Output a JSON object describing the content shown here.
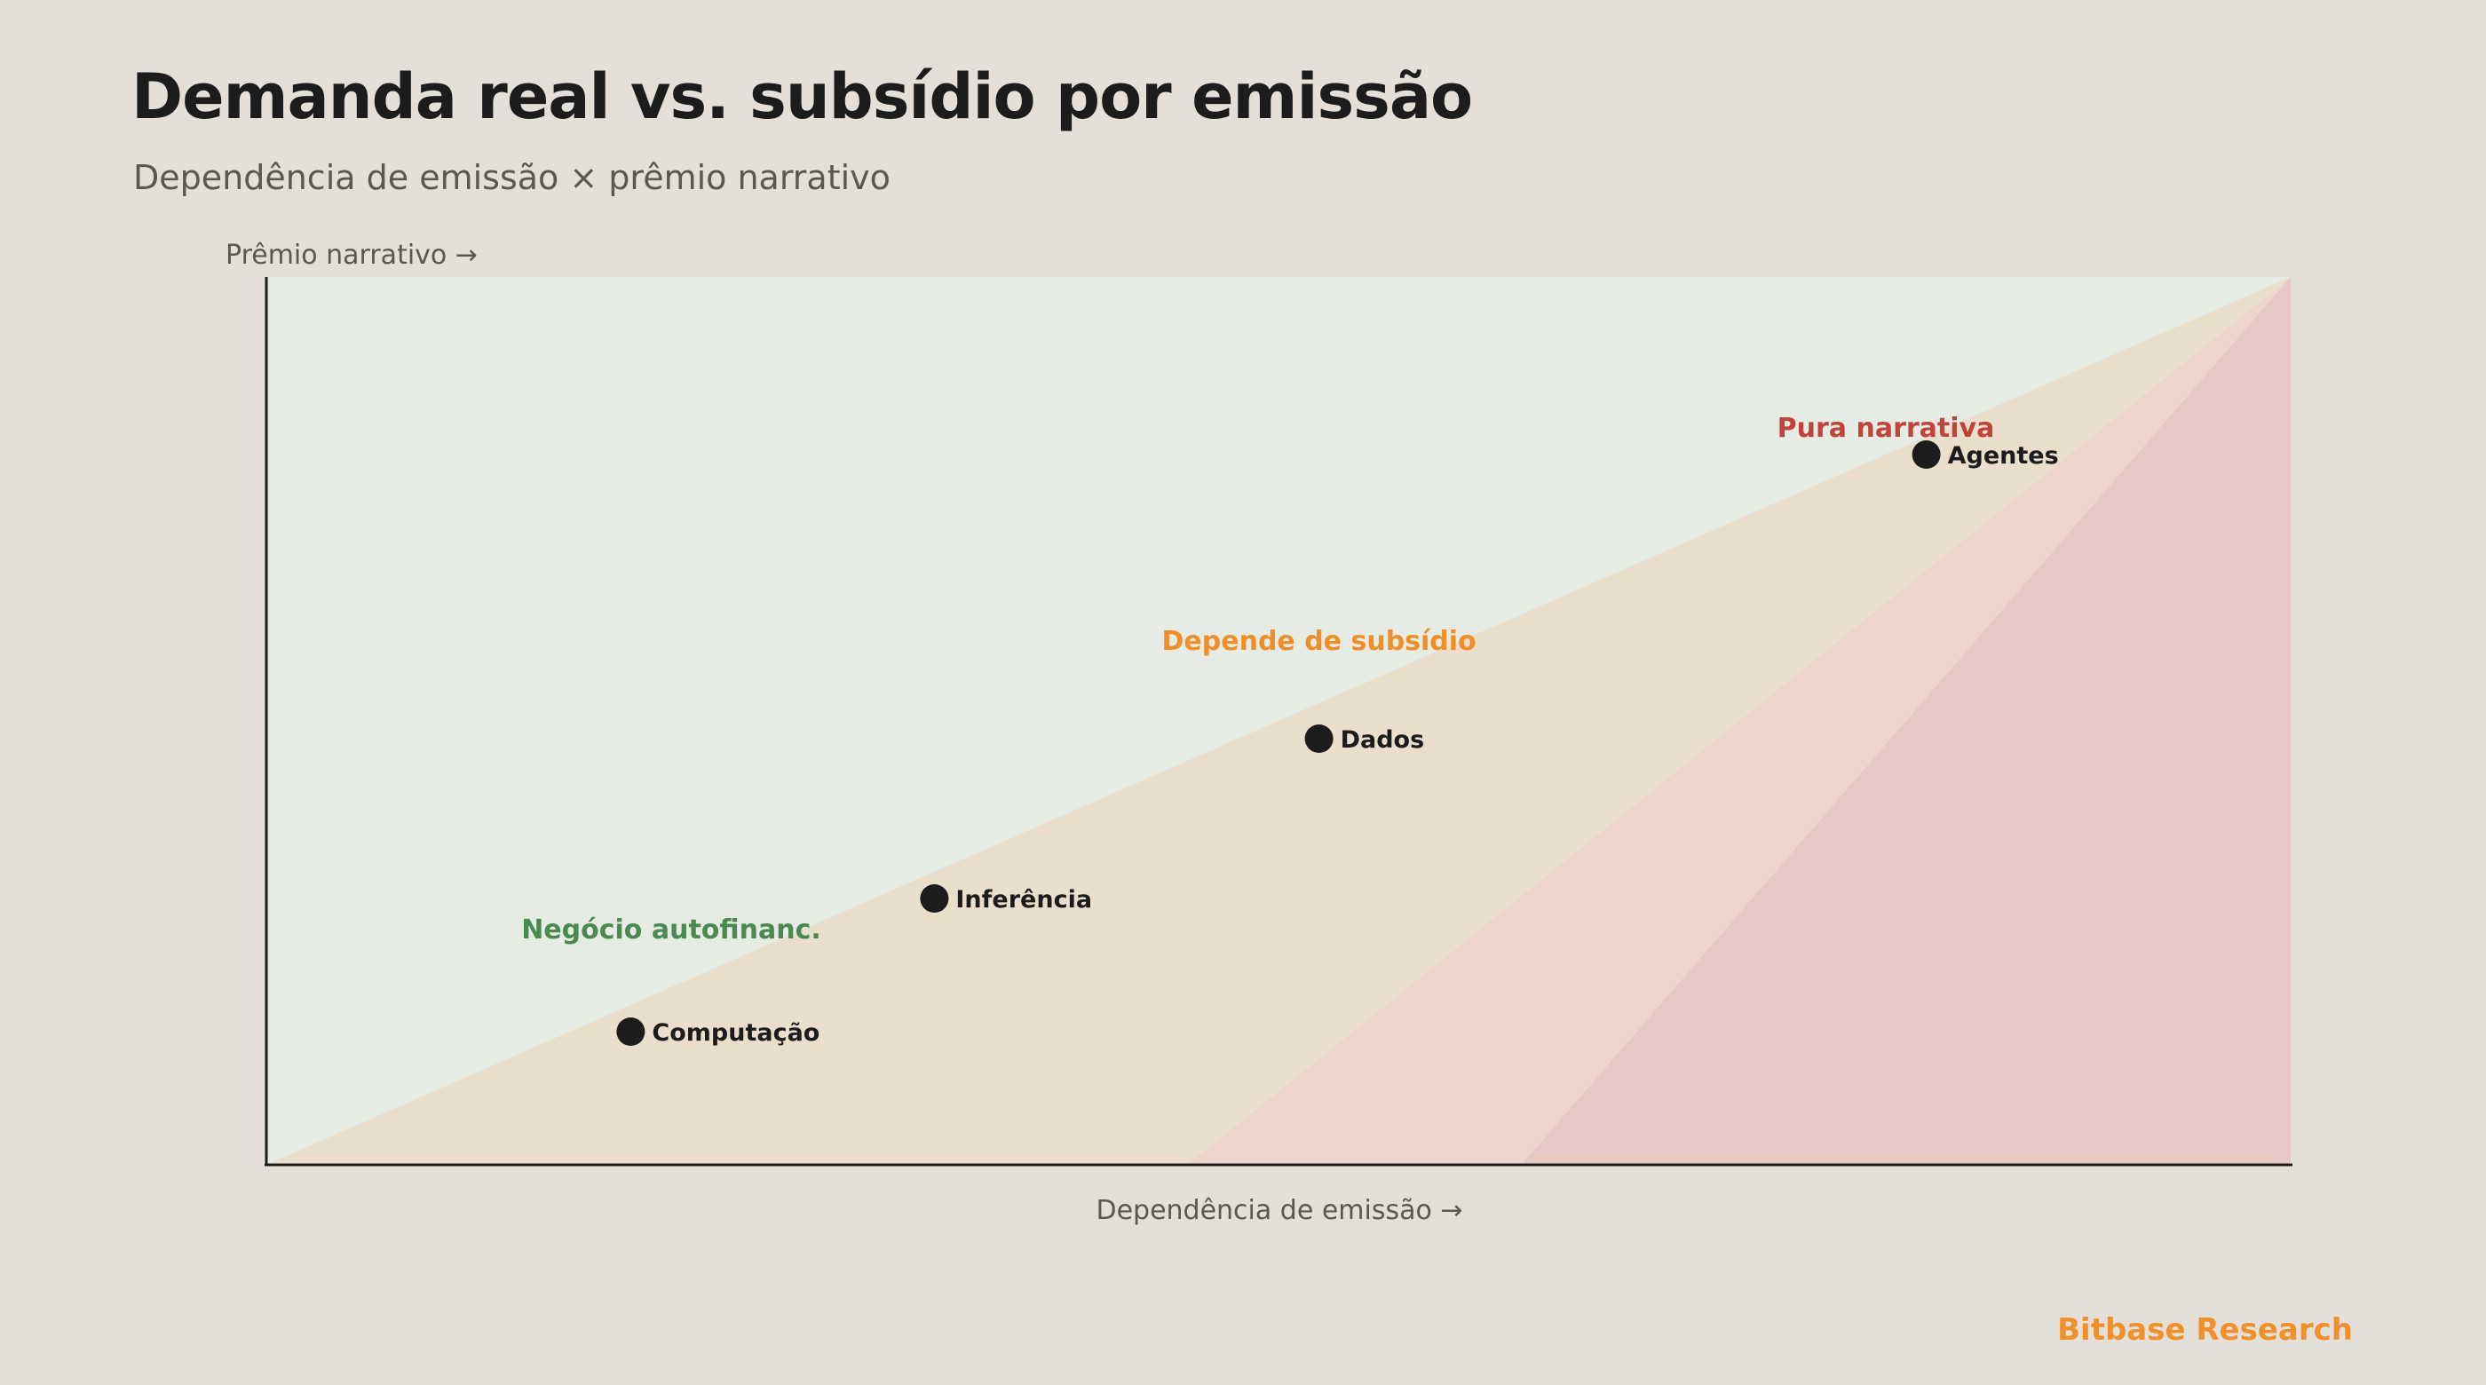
{
  "title": "Demanda real vs. subsídio por emissão",
  "subtitle": "Dependência de emissão × prêmio narrativo",
  "brand": "Bitbase Research",
  "colors": {
    "background": "#e4dfd9",
    "zone_green": "#e6ebe3",
    "zone_orange": "#eadfcd",
    "zone_pink": "#eed5cb",
    "zone_red": "#e6c9c4",
    "label_green": "#4a8a50",
    "label_orange": "#ee8f2a",
    "label_red": "#c0443a",
    "point": "#1c1c1c",
    "brand": "#f0902a"
  },
  "chart_data": {
    "type": "scatter",
    "xlabel": "Dependência de emissão →",
    "ylabel": "Prêmio narrativo →",
    "xlim": [
      0,
      1
    ],
    "ylim": [
      0,
      1
    ],
    "grid": false,
    "zones": [
      {
        "id": "green",
        "color": "#e6ebe3",
        "polygon": [
          [
            0,
            0
          ],
          [
            1,
            1
          ],
          [
            0,
            1
          ]
        ]
      },
      {
        "id": "orange",
        "color": "#eadfcd",
        "polygon": [
          [
            0,
            0
          ],
          [
            0.455,
            0
          ],
          [
            1,
            1
          ]
        ]
      },
      {
        "id": "pink",
        "color": "#eed5cb",
        "polygon": [
          [
            0.455,
            0
          ],
          [
            0.62,
            0
          ],
          [
            1,
            1
          ]
        ]
      },
      {
        "id": "red",
        "color": "#e6c9c4",
        "polygon": [
          [
            0.62,
            0
          ],
          [
            1,
            0
          ],
          [
            1,
            1
          ]
        ]
      }
    ],
    "zone_labels": [
      {
        "text": "Negócio autofinanc.",
        "x": 0.2,
        "y": 0.255,
        "color": "#4a8a50"
      },
      {
        "text": "Depende de subsídio",
        "x": 0.52,
        "y": 0.58,
        "color": "#ee8f2a"
      },
      {
        "text": "Pura narrativa",
        "x": 0.8,
        "y": 0.82,
        "color": "#c0443a"
      }
    ],
    "points": [
      {
        "label": "Computação",
        "x": 0.18,
        "y": 0.15
      },
      {
        "label": "Inferência",
        "x": 0.33,
        "y": 0.3
      },
      {
        "label": "Dados",
        "x": 0.52,
        "y": 0.48
      },
      {
        "label": "Agentes",
        "x": 0.82,
        "y": 0.8
      }
    ]
  }
}
